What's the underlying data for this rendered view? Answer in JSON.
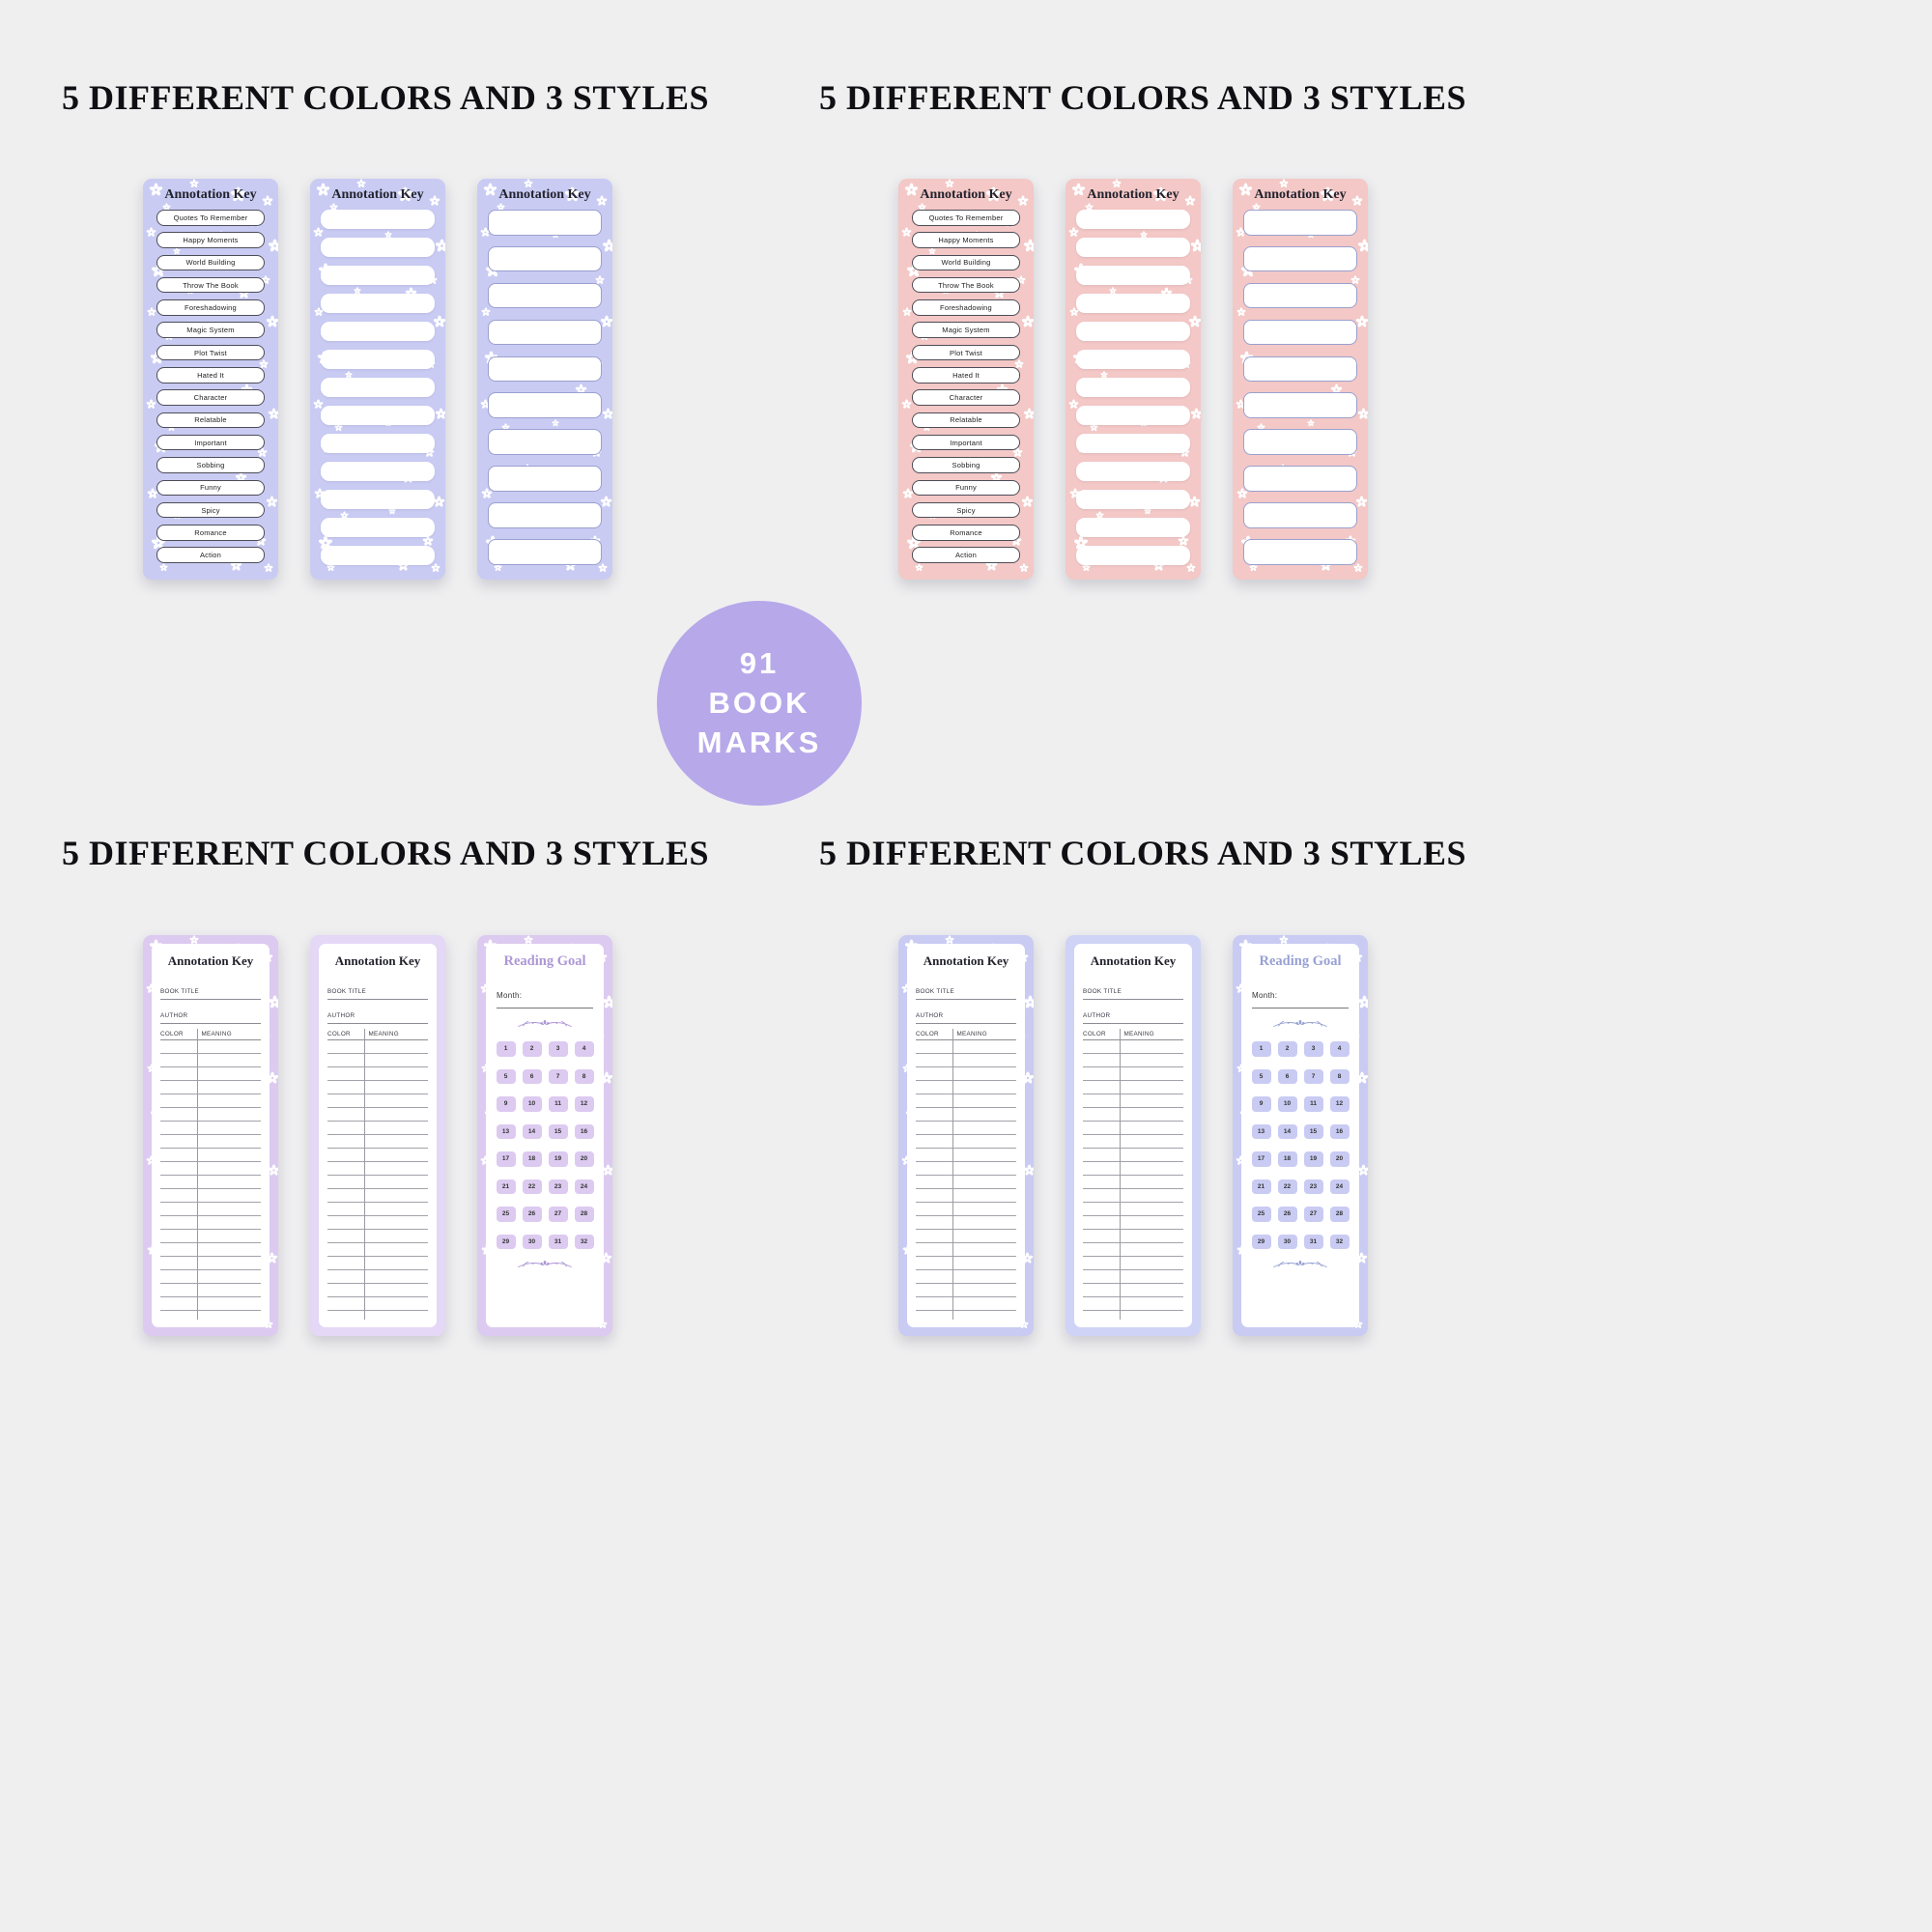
{
  "headings": [
    "5 DIFFERENT COLORS AND 3 STYLES",
    "5 DIFFERENT COLORS AND 3 STYLES",
    "5 DIFFERENT COLORS AND 3 STYLES",
    "5 DIFFERENT COLORS AND 3 STYLES"
  ],
  "badge": {
    "lines": [
      "91",
      "BOOK",
      "MARKS"
    ]
  },
  "titles": {
    "annotation_key": "Annotation Key",
    "reading_goal": "Reading Goal"
  },
  "annotation_labels": [
    "Quotes To Remember",
    "Happy Moments",
    "World Building",
    "Throw The Book",
    "Foreshadowing",
    "Magic System",
    "Plot Twist",
    "Hated It",
    "Character",
    "Relatable",
    "Important",
    "Sobbing",
    "Funny",
    "Spicy",
    "Romance",
    "Action"
  ],
  "blank_boxes_medium": [
    "",
    "",
    "",
    "",
    "",
    "",
    "",
    "",
    "",
    "",
    "",
    "",
    ""
  ],
  "blank_boxes_large": [
    "",
    "",
    "",
    "",
    "",
    "",
    "",
    "",
    "",
    ""
  ],
  "log_fields": {
    "book_title": "BOOK TITLE",
    "author": "AUTHOR",
    "color": "COLOR",
    "meaning": "MEANING"
  },
  "reading_goal": {
    "month_label": "Month:",
    "days": [
      1,
      2,
      3,
      4,
      5,
      6,
      7,
      8,
      9,
      10,
      11,
      12,
      13,
      14,
      15,
      16,
      17,
      18,
      19,
      20,
      21,
      22,
      23,
      24,
      25,
      26,
      27,
      28,
      29,
      30,
      31,
      32
    ]
  },
  "colors": {
    "background": "#efeff0",
    "periwinkle": "#c9cbf3",
    "periwinkle_solid": "#cfd3f6",
    "pink": "#f3c8c6",
    "lilac": "#dccaf0",
    "lilac_solid": "#e5d7f6",
    "badge": "#b7a8ea",
    "rg_accent_lilac": "#ad97d6",
    "rg_accent_periwinkle": "#98a1d4"
  }
}
